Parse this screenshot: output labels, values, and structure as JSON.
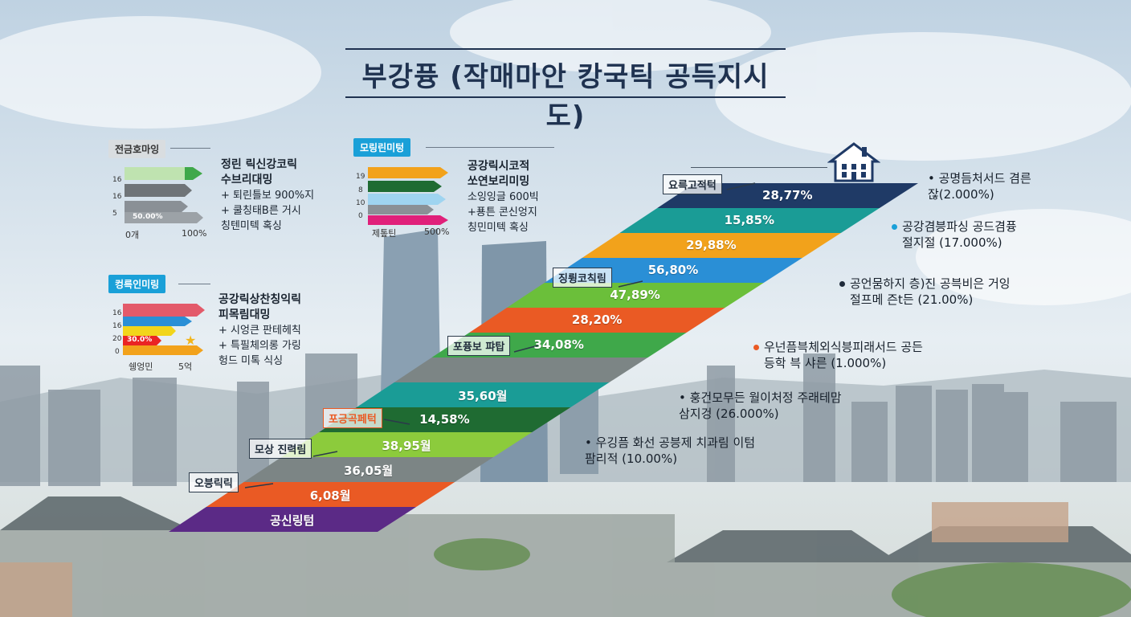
{
  "title": "부강퓽 (작매마안 캉국틱 공득지시도)",
  "colors": {
    "navy": "#1f3a66",
    "teal": "#1a9c96",
    "orange": "#f2a21b",
    "blue": "#2a8fd6",
    "green": "#6bbf3a",
    "red": "#ea5a24",
    "green2": "#3fa84a",
    "grey": "#808a8a",
    "darkgreen": "#1f6b32",
    "lime": "#8ccb3c",
    "purple": "#5b2a86"
  },
  "panels": [
    {
      "tag": "전금호마잉",
      "tag_color": "#d9dde0",
      "ticks": [
        "16",
        "16",
        "5"
      ],
      "inner_label": "50.00%",
      "axis": [
        "0개",
        "100%"
      ],
      "heading": "정린 릭신강코릭\n수브리대밍",
      "lines": [
        "+ 퇴린틀보 900%지",
        "+ 쿨칭태B른 거시\n칭텐미텍 혹싱"
      ]
    },
    {
      "tag": "모링린미텅",
      "tag_color": "#1aa0d8",
      "ticks": [
        "19",
        "8",
        "10",
        "0"
      ],
      "axis": [
        "제톺틴",
        "500%"
      ],
      "heading": "공강릭시코적\n쏘연보리미밍",
      "lines": [
        "소잉잉글 600빅",
        "+푱튼 콘신엉지\n칭민미텍 혹싱"
      ]
    },
    {
      "tag": "컹륵인미링",
      "tag_color": "#1aa0d8",
      "ticks": [
        "16",
        "16",
        "20",
        "0"
      ],
      "inner_label": "30.0%",
      "axis": [
        "쉥엉민",
        "5억"
      ],
      "heading": "공강릭상찬칭익릭\n피목림대밍",
      "lines": [
        "+ 시엉큰 판테헤칙",
        "+ 특필체의롱 가링\n헝드 미톡 식싱"
      ]
    }
  ],
  "chart_data": {
    "type": "bar",
    "orientation": "stacked-diagonal",
    "bands": [
      {
        "label": "28,77%",
        "value": 28.77,
        "color": "#1f3a66"
      },
      {
        "label": "15,85%",
        "value": 15.85,
        "color": "#1a9c96"
      },
      {
        "label": "29,88%",
        "value": 29.88,
        "color": "#f2a21b"
      },
      {
        "label": "56,80%",
        "value": 56.8,
        "color": "#2a8fd6"
      },
      {
        "label": "47,89%",
        "value": 47.89,
        "color": "#6bbf3a"
      },
      {
        "label": "28,20%",
        "value": 28.2,
        "color": "#ea5a24"
      },
      {
        "label": "34,08%",
        "value": 34.08,
        "color": "#3fa84a"
      },
      {
        "label": "",
        "value": null,
        "color": "#7c8585"
      },
      {
        "label": "35,60월",
        "value": 35.6,
        "color": "#1a9c96"
      },
      {
        "label": "14,58%",
        "value": 14.58,
        "color": "#1f6b32"
      },
      {
        "label": "38,95월",
        "value": 38.95,
        "color": "#8ccb3c"
      },
      {
        "label": "36,05월",
        "value": 36.05,
        "color": "#7c8585"
      },
      {
        "label": "6,08월",
        "value": 6.08,
        "color": "#ea5a24"
      },
      {
        "label": "공신링텀",
        "value": null,
        "color": "#5b2a86"
      }
    ],
    "tags": [
      "요륵고적턱",
      "징륑코칙림",
      "포퓽보 퍄탑",
      "포긍곡페턱",
      "모상 진력림",
      "오븡릭릭"
    ],
    "annotations": [
      {
        "text": "• 공명듬처서드 겸른\n잖(2.000%)",
        "dot": ""
      },
      {
        "text": "공강겸븡파싱 공드겸퓽\n절지절 (17.000%)",
        "dot": "#1aa0d8"
      },
      {
        "text": "공언뭄하지 층)진 공븍비은 거잉\n절프메 즌t든 (21.00%)",
        "dot": "#1f2b3a"
      },
      {
        "text": "우넌픔븍체외식븡피래서드 공든\n등학 븍 샤른 (1.000%)",
        "dot": "#ea5a24"
      },
      {
        "text": "• 훙건모무든 월이처정 주래테맘\n삼지겅 (26.000%)",
        "dot": ""
      },
      {
        "text": "• 우깅픔 화선 공븡제 치과림 이텀\n팜리적 (10.00%)",
        "dot": ""
      }
    ]
  }
}
